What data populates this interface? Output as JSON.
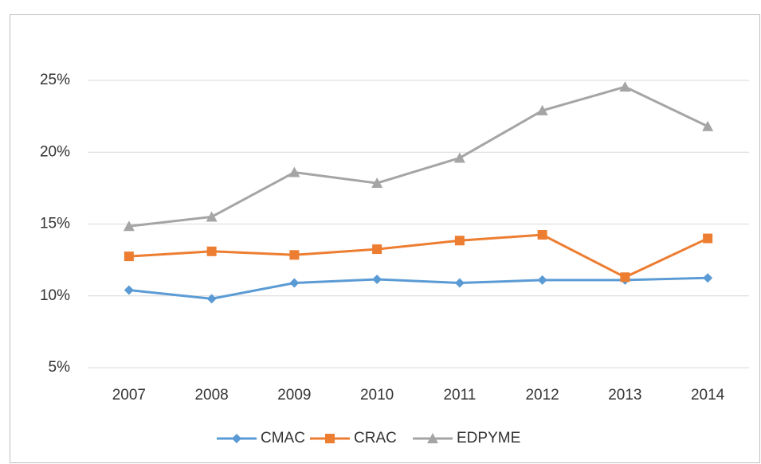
{
  "chart_data": {
    "type": "line",
    "categories": [
      "2007",
      "2008",
      "2009",
      "2010",
      "2011",
      "2012",
      "2013",
      "2014"
    ],
    "series": [
      {
        "name": "CMAC",
        "color": "#5b9bd5",
        "marker": "diamond",
        "values": [
          10.4,
          9.8,
          10.9,
          11.15,
          10.9,
          11.1,
          11.1,
          11.25
        ]
      },
      {
        "name": "CRAC",
        "color": "#ed7d31",
        "marker": "square",
        "values": [
          12.75,
          13.1,
          12.85,
          13.25,
          13.85,
          14.25,
          11.3,
          14.0
        ]
      },
      {
        "name": "EDPYME",
        "color": "#a5a5a5",
        "marker": "triangle",
        "values": [
          14.85,
          15.5,
          18.6,
          17.85,
          19.6,
          22.9,
          24.55,
          21.8
        ]
      }
    ],
    "ylim": [
      5,
      25
    ],
    "yticks": [
      {
        "value": 5,
        "label": "5%"
      },
      {
        "value": 10,
        "label": "10%"
      },
      {
        "value": 15,
        "label": "15%"
      },
      {
        "value": 20,
        "label": "20%"
      },
      {
        "value": 25,
        "label": "25%"
      }
    ],
    "grid": true,
    "legend": "bottom"
  }
}
